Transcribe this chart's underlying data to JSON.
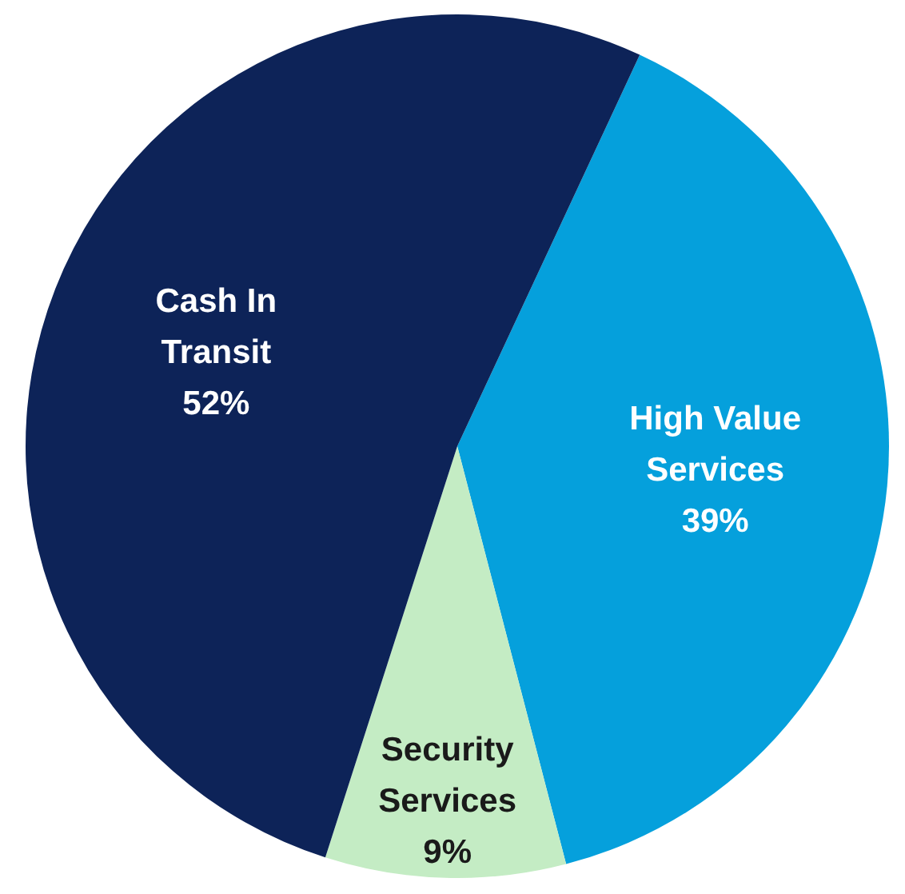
{
  "chart_data": {
    "type": "pie",
    "categories": [
      "High Value Services",
      "Security Services",
      "Cash In Transit"
    ],
    "values": [
      39,
      9,
      52
    ],
    "colors": [
      "#05a0dc",
      "#c4ecc4",
      "#0d2358"
    ],
    "value_labels": [
      "39%",
      "9%",
      "52%"
    ]
  }
}
